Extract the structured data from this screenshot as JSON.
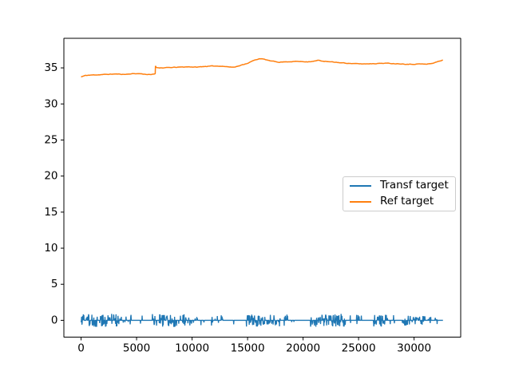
{
  "chart_data": {
    "type": "line",
    "title": "",
    "xlabel": "",
    "ylabel": "",
    "xlim": [
      -1550,
      34200
    ],
    "ylim": [
      -2.33,
      39.1
    ],
    "xticks": [
      0,
      5000,
      10000,
      15000,
      20000,
      25000,
      30000
    ],
    "yticks": [
      0,
      5,
      10,
      15,
      20,
      25,
      30,
      35
    ],
    "grid": false,
    "axis_color": "#000000",
    "tick_label_color": "#000000",
    "legend": {
      "position": "center right",
      "entries": [
        {
          "label": "Transf target",
          "color": "#1f77b4"
        },
        {
          "label": "Ref target",
          "color": "#ff7f0e"
        }
      ]
    },
    "series": [
      {
        "name": "Transf target",
        "color": "#1f77b4",
        "type": "noisy-baseline",
        "baseline": 0,
        "x_start": 0,
        "x_end": 32600,
        "noise_step": 25,
        "noise_clusters": [
          {
            "range": [
              0,
              3400
            ],
            "density": 0.55,
            "amplitude": 0.9,
            "up_fraction": 0.5
          },
          {
            "range": [
              3500,
              5600
            ],
            "density": 0.12,
            "amplitude": 0.8,
            "up_fraction": 0.5
          },
          {
            "range": [
              6400,
              8600
            ],
            "density": 0.55,
            "amplitude": 0.9,
            "up_fraction": 0.5
          },
          {
            "range": [
              8800,
              10500
            ],
            "density": 0.35,
            "amplitude": 0.85,
            "up_fraction": 0.5
          },
          {
            "range": [
              10700,
              11300
            ],
            "density": 0.12,
            "amplitude": 0.7,
            "up_fraction": 0.25
          },
          {
            "range": [
              11700,
              12900
            ],
            "density": 0.13,
            "amplitude": 0.8,
            "up_fraction": 0.5
          },
          {
            "range": [
              13300,
              13900
            ],
            "density": 0.12,
            "amplitude": 0.65,
            "up_fraction": 0.5
          },
          {
            "range": [
              14900,
              16600
            ],
            "density": 0.5,
            "amplitude": 0.9,
            "up_fraction": 0.5
          },
          {
            "range": [
              16700,
              18600
            ],
            "density": 0.28,
            "amplitude": 0.85,
            "up_fraction": 0.5
          },
          {
            "range": [
              18800,
              19600
            ],
            "density": 0.12,
            "amplitude": 0.7,
            "up_fraction": 0.5
          },
          {
            "range": [
              20600,
              23800
            ],
            "density": 0.45,
            "amplitude": 0.9,
            "up_fraction": 0.5
          },
          {
            "range": [
              24100,
              25300
            ],
            "density": 0.12,
            "amplitude": 0.75,
            "up_fraction": 0.5
          },
          {
            "range": [
              26350,
              27600
            ],
            "density": 0.55,
            "amplitude": 0.9,
            "up_fraction": 0.5
          },
          {
            "range": [
              27700,
              29900
            ],
            "density": 0.15,
            "amplitude": 0.8,
            "up_fraction": 0.3
          },
          {
            "range": [
              29900,
              31300
            ],
            "density": 0.3,
            "amplitude": 0.6,
            "up_fraction": 0.8
          },
          {
            "range": [
              31300,
              32300
            ],
            "density": 0.18,
            "amplitude": 0.55,
            "up_fraction": 0.8
          }
        ]
      },
      {
        "name": "Ref target",
        "color": "#ff7f0e",
        "type": "keypoints",
        "points": [
          [
            0,
            33.75
          ],
          [
            400,
            33.95
          ],
          [
            900,
            34.0
          ],
          [
            1600,
            34.05
          ],
          [
            2300,
            34.1
          ],
          [
            3100,
            34.15
          ],
          [
            3900,
            34.1
          ],
          [
            4700,
            34.2
          ],
          [
            5300,
            34.2
          ],
          [
            5900,
            34.1
          ],
          [
            6300,
            34.05
          ],
          [
            6600,
            34.15
          ],
          [
            6680,
            34.2
          ],
          [
            6700,
            35.3
          ],
          [
            6780,
            35.05
          ],
          [
            7300,
            35.0
          ],
          [
            8100,
            35.05
          ],
          [
            8900,
            35.1
          ],
          [
            9700,
            35.15
          ],
          [
            10400,
            35.1
          ],
          [
            11100,
            35.2
          ],
          [
            11900,
            35.25
          ],
          [
            12600,
            35.25
          ],
          [
            13200,
            35.15
          ],
          [
            13700,
            35.1
          ],
          [
            14300,
            35.3
          ],
          [
            15000,
            35.65
          ],
          [
            15600,
            36.05
          ],
          [
            16100,
            36.3
          ],
          [
            16600,
            36.15
          ],
          [
            17100,
            35.95
          ],
          [
            17800,
            35.8
          ],
          [
            18600,
            35.85
          ],
          [
            19400,
            35.9
          ],
          [
            20200,
            35.85
          ],
          [
            20900,
            35.9
          ],
          [
            21400,
            36.05
          ],
          [
            21900,
            35.9
          ],
          [
            22700,
            35.8
          ],
          [
            23500,
            35.7
          ],
          [
            24400,
            35.6
          ],
          [
            25400,
            35.55
          ],
          [
            26400,
            35.6
          ],
          [
            27400,
            35.65
          ],
          [
            28200,
            35.6
          ],
          [
            29000,
            35.55
          ],
          [
            29800,
            35.5
          ],
          [
            30500,
            35.55
          ],
          [
            31100,
            35.5
          ],
          [
            31700,
            35.65
          ],
          [
            32200,
            35.9
          ],
          [
            32600,
            36.1
          ]
        ]
      }
    ]
  }
}
